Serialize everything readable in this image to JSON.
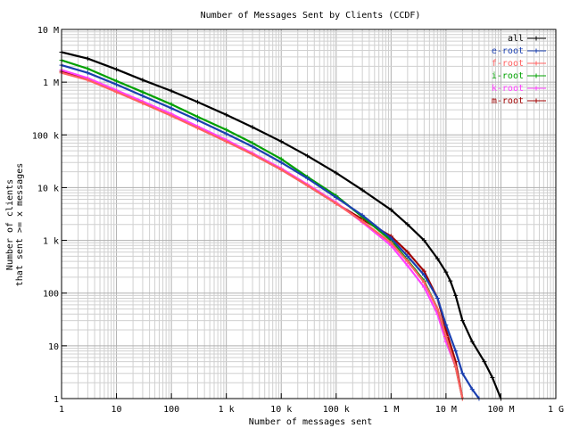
{
  "chart_data": {
    "type": "line",
    "title": "Number of Messages Sent by Clients (CCDF)",
    "xlabel": "Number of messages sent",
    "ylabel_line1": "Number of clients",
    "ylabel_line2": "that sent >= x messages",
    "x_scale": "log",
    "y_scale": "log",
    "xlim": [
      1,
      1000000000
    ],
    "ylim": [
      1,
      10000000
    ],
    "grid": true,
    "legend_position": "top-right",
    "x_ticks": [
      {
        "value": 1,
        "label": "1"
      },
      {
        "value": 10,
        "label": "10"
      },
      {
        "value": 100,
        "label": "100"
      },
      {
        "value": 1000,
        "label": "1 k"
      },
      {
        "value": 10000,
        "label": "10 k"
      },
      {
        "value": 100000,
        "label": "100 k"
      },
      {
        "value": 1000000,
        "label": "1 M"
      },
      {
        "value": 10000000,
        "label": "10 M"
      },
      {
        "value": 100000000,
        "label": "100 M"
      },
      {
        "value": 1000000000,
        "label": "1 G"
      }
    ],
    "y_ticks": [
      {
        "value": 1,
        "label": "1"
      },
      {
        "value": 10,
        "label": "10"
      },
      {
        "value": 100,
        "label": "100"
      },
      {
        "value": 1000,
        "label": "1 k"
      },
      {
        "value": 10000,
        "label": "10 k"
      },
      {
        "value": 100000,
        "label": "100 k"
      },
      {
        "value": 1000000,
        "label": "1 M"
      },
      {
        "value": 10000000,
        "label": "10 M"
      }
    ],
    "series": [
      {
        "name": "all",
        "color": "#000000",
        "x": [
          1,
          3,
          10,
          30,
          100,
          300,
          1000,
          3000,
          10000,
          30000,
          100000,
          300000,
          1000000,
          2000000,
          4000000,
          7000000,
          10000000,
          12000000,
          15000000,
          20000000,
          30000000,
          50000000,
          70000000,
          100000000
        ],
        "y": [
          3700000,
          2800000,
          1750000,
          1100000,
          680000,
          420000,
          240000,
          140000,
          75000,
          40000,
          19000,
          9000,
          3800,
          2000,
          1000,
          450,
          250,
          170,
          90,
          30,
          12,
          5,
          2.5,
          1
        ]
      },
      {
        "name": "e-root",
        "color": "#1a3fb0",
        "x": [
          1,
          3,
          10,
          30,
          100,
          300,
          1000,
          3000,
          10000,
          30000,
          100000,
          300000,
          1000000,
          2000000,
          4000000,
          7000000,
          10000000,
          15000000,
          20000000,
          30000000,
          40000000
        ],
        "y": [
          2100000,
          1500000,
          900000,
          550000,
          320000,
          190000,
          105000,
          60000,
          30000,
          15000,
          6500,
          3000,
          1100,
          500,
          220,
          80,
          25,
          8,
          3,
          1.5,
          1
        ]
      },
      {
        "name": "f-root",
        "color": "#ff6060",
        "x": [
          1,
          3,
          10,
          30,
          100,
          300,
          1000,
          3000,
          10000,
          30000,
          100000,
          300000,
          1000000,
          2000000,
          4000000,
          7000000,
          10000000,
          15000000,
          20000000
        ],
        "y": [
          1500000,
          1100000,
          650000,
          400000,
          230000,
          135000,
          75000,
          43000,
          22000,
          11000,
          5000,
          2300,
          900,
          400,
          160,
          50,
          15,
          4,
          1
        ]
      },
      {
        "name": "i-root",
        "color": "#00a000",
        "x": [
          1,
          3,
          10,
          30,
          100,
          300,
          1000,
          3000,
          10000,
          30000,
          100000,
          300000,
          1000000,
          2000000,
          4000000,
          7000000,
          10000000,
          15000000,
          20000000
        ],
        "y": [
          2600000,
          1800000,
          1050000,
          650000,
          380000,
          220000,
          125000,
          70000,
          35000,
          16000,
          7000,
          2800,
          1000,
          420,
          170,
          50,
          15,
          4,
          1
        ]
      },
      {
        "name": "k-root",
        "color": "#ff40ff",
        "x": [
          1,
          3,
          10,
          30,
          100,
          300,
          1000,
          3000,
          10000,
          30000,
          100000,
          300000,
          1000000,
          2000000,
          4000000,
          7000000,
          10000000,
          15000000,
          20000000
        ],
        "y": [
          1700000,
          1200000,
          700000,
          430000,
          250000,
          145000,
          80000,
          45000,
          23000,
          11500,
          5200,
          2200,
          800,
          330,
          130,
          40,
          12,
          4,
          1
        ]
      },
      {
        "name": "m-root",
        "color": "#a00000",
        "x": [
          1,
          3,
          10,
          30,
          100,
          300,
          1000,
          3000,
          10000,
          30000,
          100000,
          300000,
          1000000,
          2000000,
          4000000,
          7000000,
          10000000,
          15000000,
          20000000
        ],
        "y": [
          1600000,
          1150000,
          670000,
          410000,
          235000,
          138000,
          76000,
          43000,
          22000,
          11000,
          5000,
          2500,
          1200,
          600,
          260,
          80,
          20,
          5,
          1
        ]
      }
    ]
  }
}
